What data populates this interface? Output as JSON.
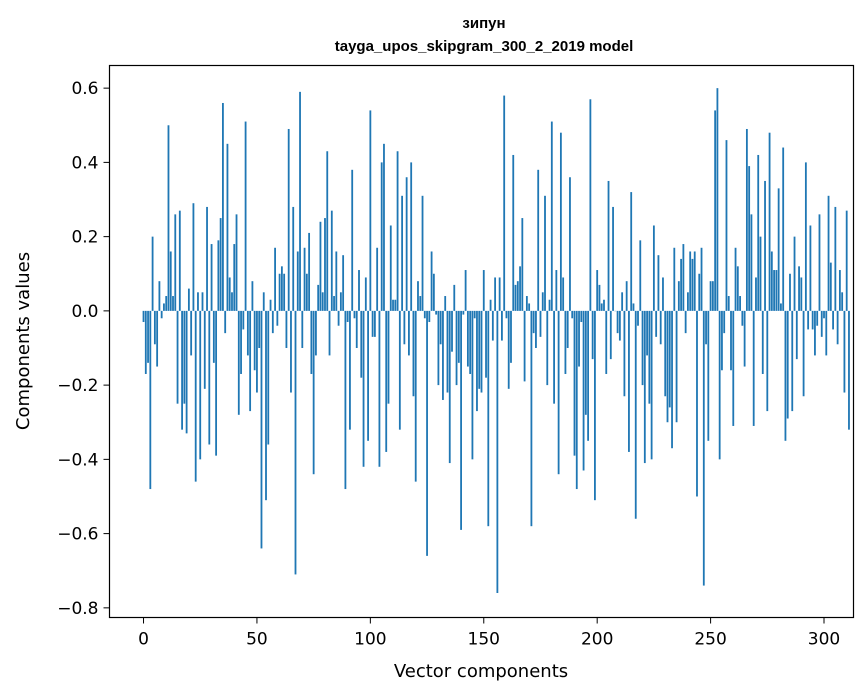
{
  "chart_data": {
    "type": "bar",
    "title": "зипун",
    "subtitle": "tayga_upos_skipgram_300_2_2019 model",
    "xlabel": "Vector components",
    "ylabel": "Components values",
    "xlim": [
      -15,
      313
    ],
    "ylim": [
      -0.826,
      0.661
    ],
    "xticks": [
      0,
      50,
      100,
      150,
      200,
      250,
      300
    ],
    "xtick_labels": [
      "0",
      "50",
      "100",
      "150",
      "200",
      "250",
      "300"
    ],
    "yticks": [
      -0.8,
      -0.6,
      -0.4,
      -0.2,
      0.0,
      0.2,
      0.4,
      0.6
    ],
    "ytick_labels": [
      "−0.8",
      "−0.6",
      "−0.4",
      "−0.2",
      "0.0",
      "0.2",
      "0.4",
      "0.6"
    ],
    "bar_color": "#1f77b4",
    "grid": false,
    "legend": "none",
    "x_start": 0,
    "values": [
      -0.03,
      -0.17,
      -0.14,
      -0.48,
      0.2,
      -0.09,
      -0.15,
      0.08,
      -0.02,
      0.02,
      0.04,
      0.5,
      0.16,
      0.04,
      0.26,
      -0.25,
      0.27,
      -0.32,
      -0.25,
      -0.33,
      0.06,
      -0.12,
      0.29,
      -0.46,
      0.05,
      -0.4,
      0.05,
      -0.21,
      0.28,
      -0.36,
      0.18,
      -0.14,
      -0.39,
      0.19,
      0.25,
      0.56,
      -0.06,
      0.45,
      0.09,
      0.05,
      0.18,
      0.26,
      -0.28,
      -0.17,
      -0.05,
      0.51,
      -0.12,
      -0.27,
      0.08,
      -0.16,
      -0.22,
      -0.1,
      -0.64,
      0.05,
      -0.51,
      -0.36,
      0.03,
      -0.06,
      0.17,
      -0.04,
      0.1,
      0.12,
      0.1,
      -0.1,
      0.49,
      -0.22,
      0.28,
      -0.71,
      0.16,
      0.59,
      -0.1,
      0.17,
      0.1,
      0.21,
      -0.17,
      -0.44,
      -0.12,
      0.07,
      0.24,
      0.05,
      0.25,
      0.43,
      -0.12,
      0.27,
      0.04,
      0.16,
      -0.04,
      0.05,
      0.15,
      -0.48,
      -0.03,
      -0.32,
      0.38,
      -0.02,
      -0.1,
      0.11,
      -0.18,
      -0.42,
      0.09,
      -0.35,
      0.54,
      -0.07,
      -0.07,
      0.17,
      -0.42,
      0.4,
      0.45,
      -0.38,
      -0.25,
      0.23,
      0.03,
      0.03,
      0.43,
      -0.32,
      0.31,
      -0.09,
      0.36,
      -0.12,
      0.4,
      -0.23,
      -0.46,
      0.08,
      0.04,
      0.31,
      -0.02,
      -0.66,
      -0.03,
      0.16,
      0.1,
      -0.01,
      -0.2,
      -0.09,
      -0.24,
      0.04,
      -0.22,
      -0.41,
      -0.11,
      0.07,
      -0.2,
      -0.14,
      -0.59,
      -0.01,
      0.11,
      -0.15,
      -0.17,
      -0.4,
      -0.02,
      -0.27,
      -0.21,
      -0.22,
      0.11,
      -0.18,
      -0.58,
      0.03,
      -0.08,
      0.09,
      -0.76,
      0.09,
      -0.08,
      0.58,
      -0.02,
      -0.21,
      -0.14,
      0.42,
      0.07,
      0.08,
      0.12,
      0.25,
      -0.19,
      0.04,
      0.02,
      -0.58,
      -0.06,
      -0.1,
      0.38,
      -0.07,
      0.05,
      0.31,
      -0.2,
      0.03,
      0.51,
      -0.25,
      0.11,
      -0.44,
      0.48,
      0.09,
      -0.17,
      -0.1,
      0.36,
      -0.02,
      -0.39,
      -0.48,
      -0.15,
      -0.03,
      -0.43,
      -0.28,
      -0.35,
      0.57,
      -0.13,
      -0.51,
      0.11,
      0.07,
      0.02,
      0.03,
      -0.17,
      0.35,
      -0.13,
      0.28,
      0.0,
      -0.06,
      -0.08,
      0.05,
      -0.23,
      0.08,
      -0.38,
      0.32,
      0.02,
      -0.56,
      -0.04,
      0.19,
      -0.2,
      -0.41,
      -0.12,
      -0.25,
      -0.4,
      0.23,
      -0.07,
      0.15,
      -0.09,
      0.09,
      -0.23,
      -0.3,
      -0.26,
      -0.37,
      0.17,
      -0.3,
      0.08,
      0.14,
      0.18,
      -0.06,
      0.05,
      0.16,
      0.14,
      0.16,
      -0.5,
      0.1,
      0.17,
      -0.74,
      -0.09,
      -0.35,
      0.08,
      0.08,
      0.54,
      0.6,
      -0.4,
      -0.16,
      -0.06,
      0.46,
      0.04,
      -0.16,
      -0.31,
      0.17,
      0.12,
      0.04,
      -0.04,
      -0.15,
      0.49,
      0.39,
      0.26,
      -0.31,
      0.09,
      0.42,
      0.2,
      -0.17,
      0.35,
      -0.27,
      0.48,
      0.16,
      0.11,
      0.11,
      0.33,
      0.02,
      0.44,
      -0.35,
      -0.29,
      0.1,
      -0.27,
      0.2,
      -0.13,
      0.12,
      0.09,
      -0.23,
      0.4,
      -0.05,
      0.23,
      -0.05,
      -0.12,
      -0.04,
      0.26,
      -0.07,
      -0.02,
      -0.12,
      0.31,
      0.13,
      -0.05,
      0.28,
      -0.09,
      0.11,
      0.05,
      -0.22,
      0.27,
      -0.32
    ]
  }
}
